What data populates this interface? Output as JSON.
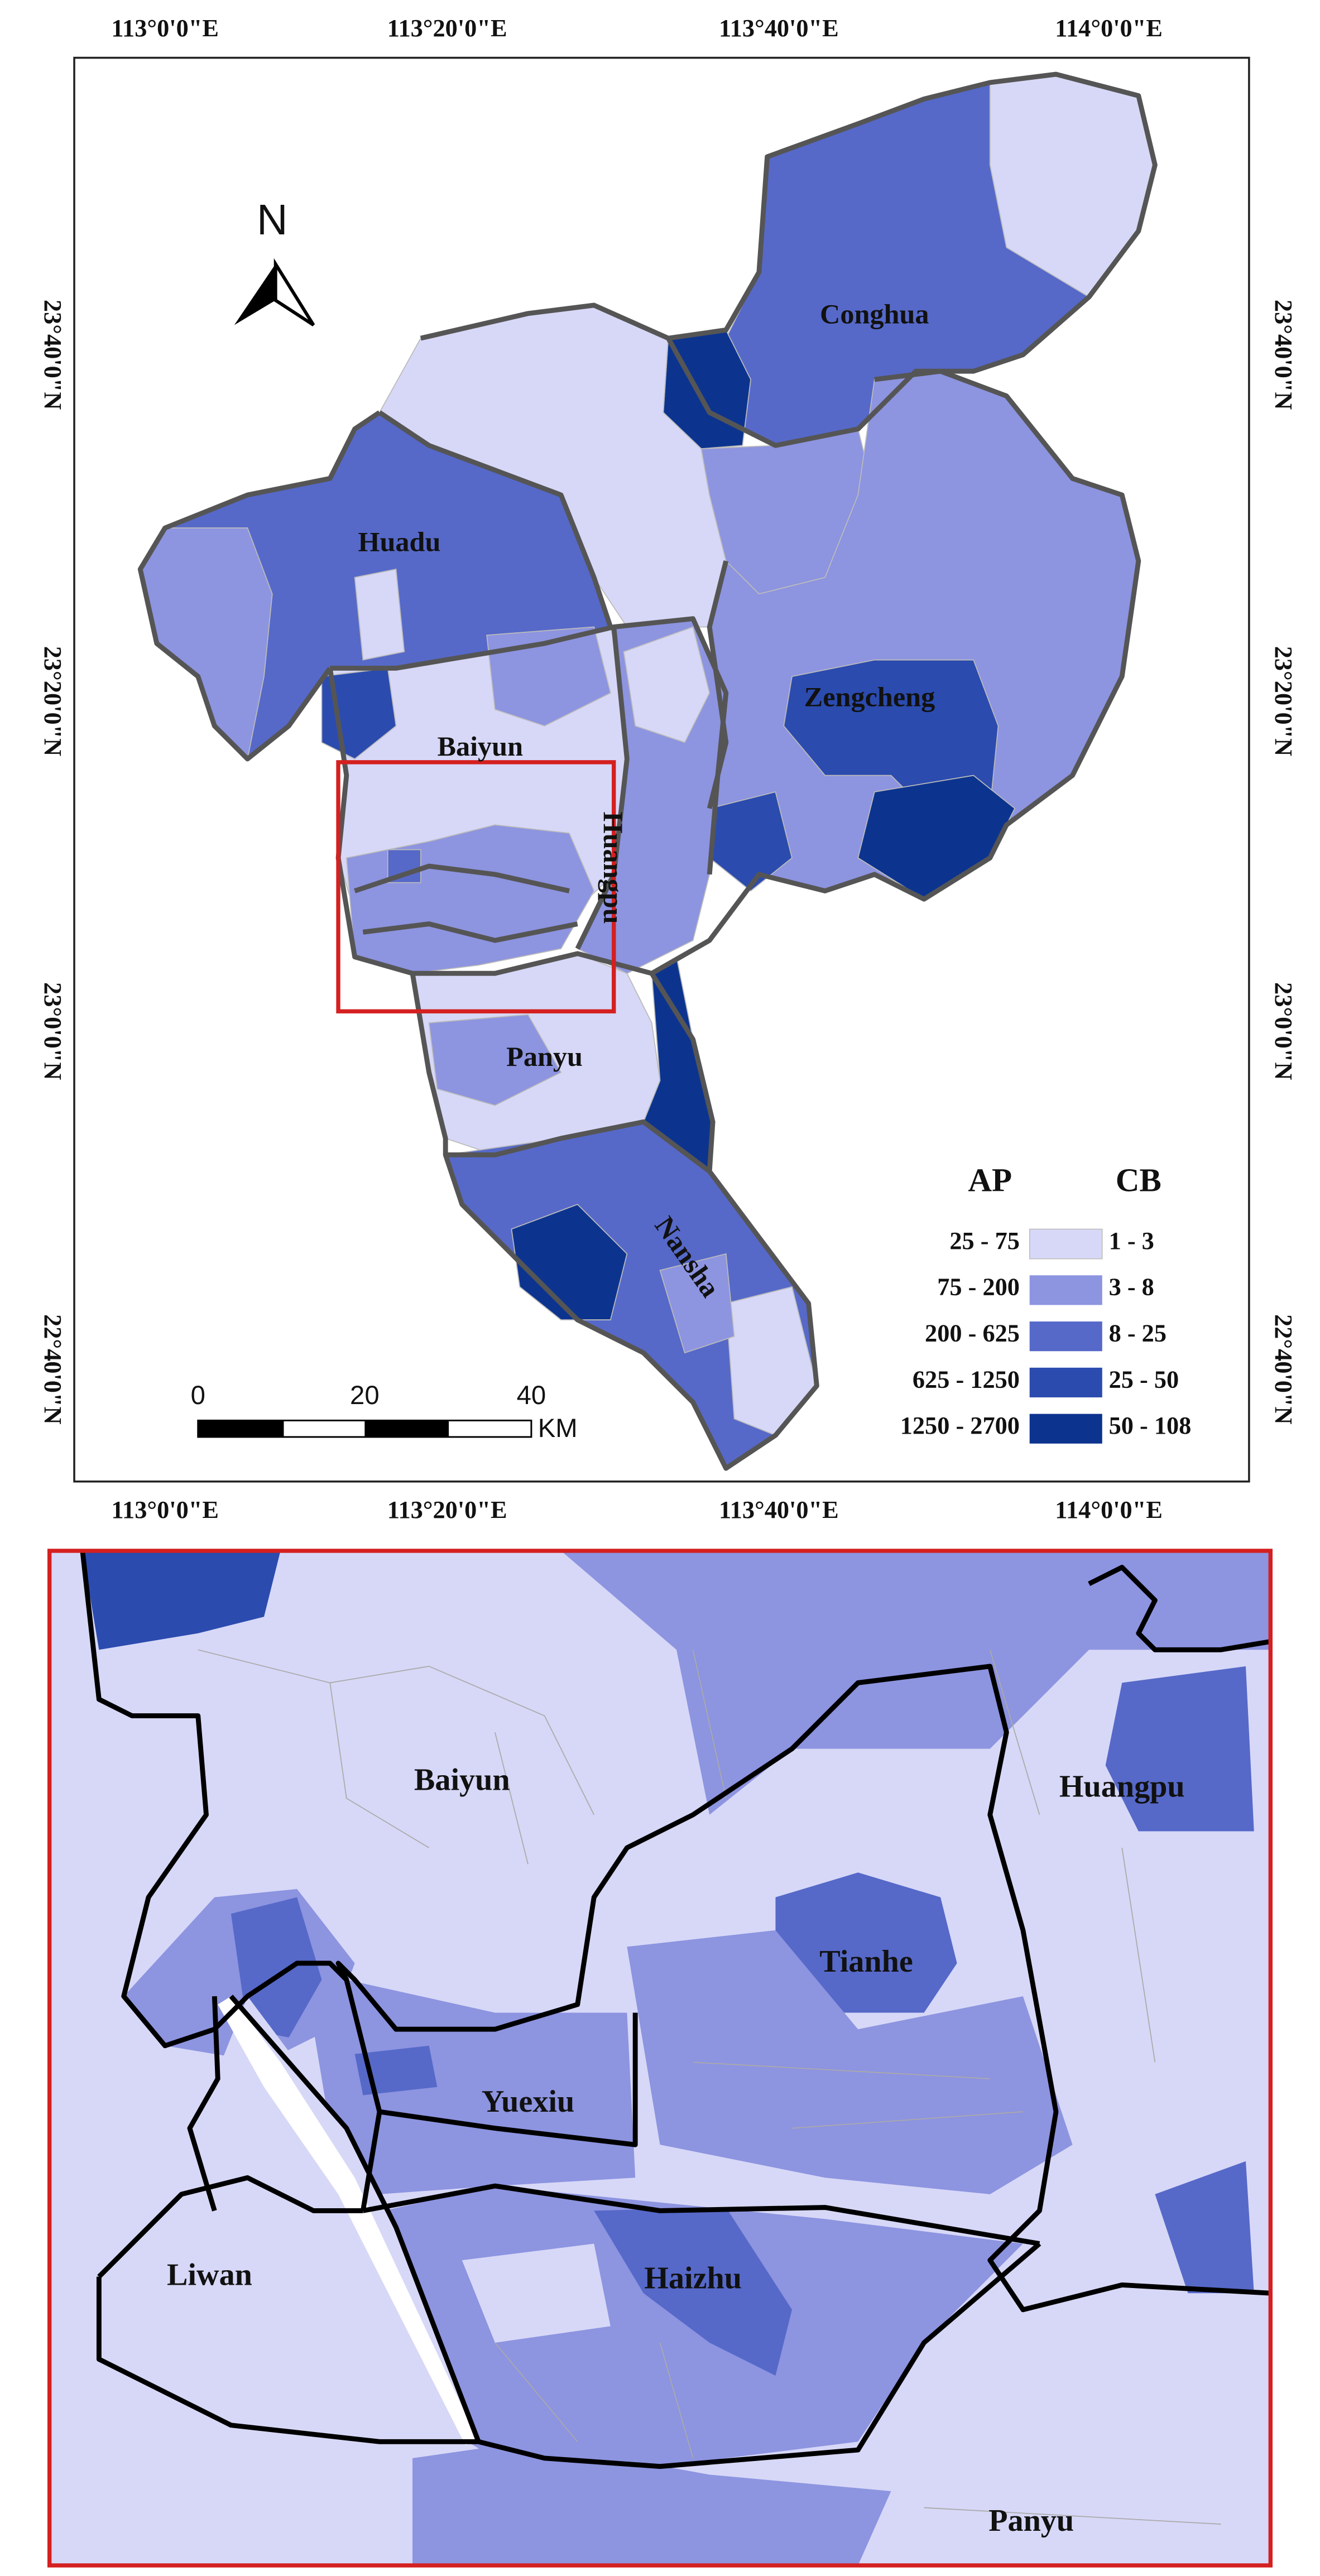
{
  "colors": {
    "class1": "#d7d8f7",
    "class2": "#8d94e0",
    "class3": "#5669c9",
    "class4": "#2b4bae",
    "class5": "#0c348f",
    "inset_frame": "#d42020"
  },
  "axes": {
    "lon_labels": [
      "113°0'0\"E",
      "113°20'0\"E",
      "113°40'0\"E",
      "114°0'0\"E"
    ],
    "lat_labels": [
      "23°40'0\"N",
      "23°20'0\"N",
      "23°0'0\"N",
      "22°40'0\"N"
    ]
  },
  "north_arrow": {
    "label": "N",
    "icon": "north-arrow-icon"
  },
  "districts": {
    "conghua": "Conghua",
    "huadu": "Huadu",
    "zengcheng": "Zengcheng",
    "baiyun": "Baiyun",
    "huangpu": "Huangpu",
    "panyu": "Panyu",
    "nansha": "Nansha"
  },
  "legend": {
    "ap_title": "AP",
    "cb_title": "CB",
    "items": [
      {
        "ap": "25 - 75",
        "cb": "1 - 3"
      },
      {
        "ap": "75 - 200",
        "cb": "3 - 8"
      },
      {
        "ap": "200 - 625",
        "cb": "8 - 25"
      },
      {
        "ap": "625 - 1250",
        "cb": "25 - 50"
      },
      {
        "ap": "1250 - 2700",
        "cb": "50 - 108"
      }
    ]
  },
  "scale_bar": {
    "ticks": [
      "0",
      "20",
      "40"
    ],
    "unit": "KM"
  },
  "inset": {
    "districts": {
      "baiyun": "Baiyun",
      "huangpu": "Huangpu",
      "tianhe": "Tianhe",
      "yuexiu": "Yuexiu",
      "liwan": "Liwan",
      "haizhu": "Haizhu",
      "panyu": "Panyu"
    }
  }
}
